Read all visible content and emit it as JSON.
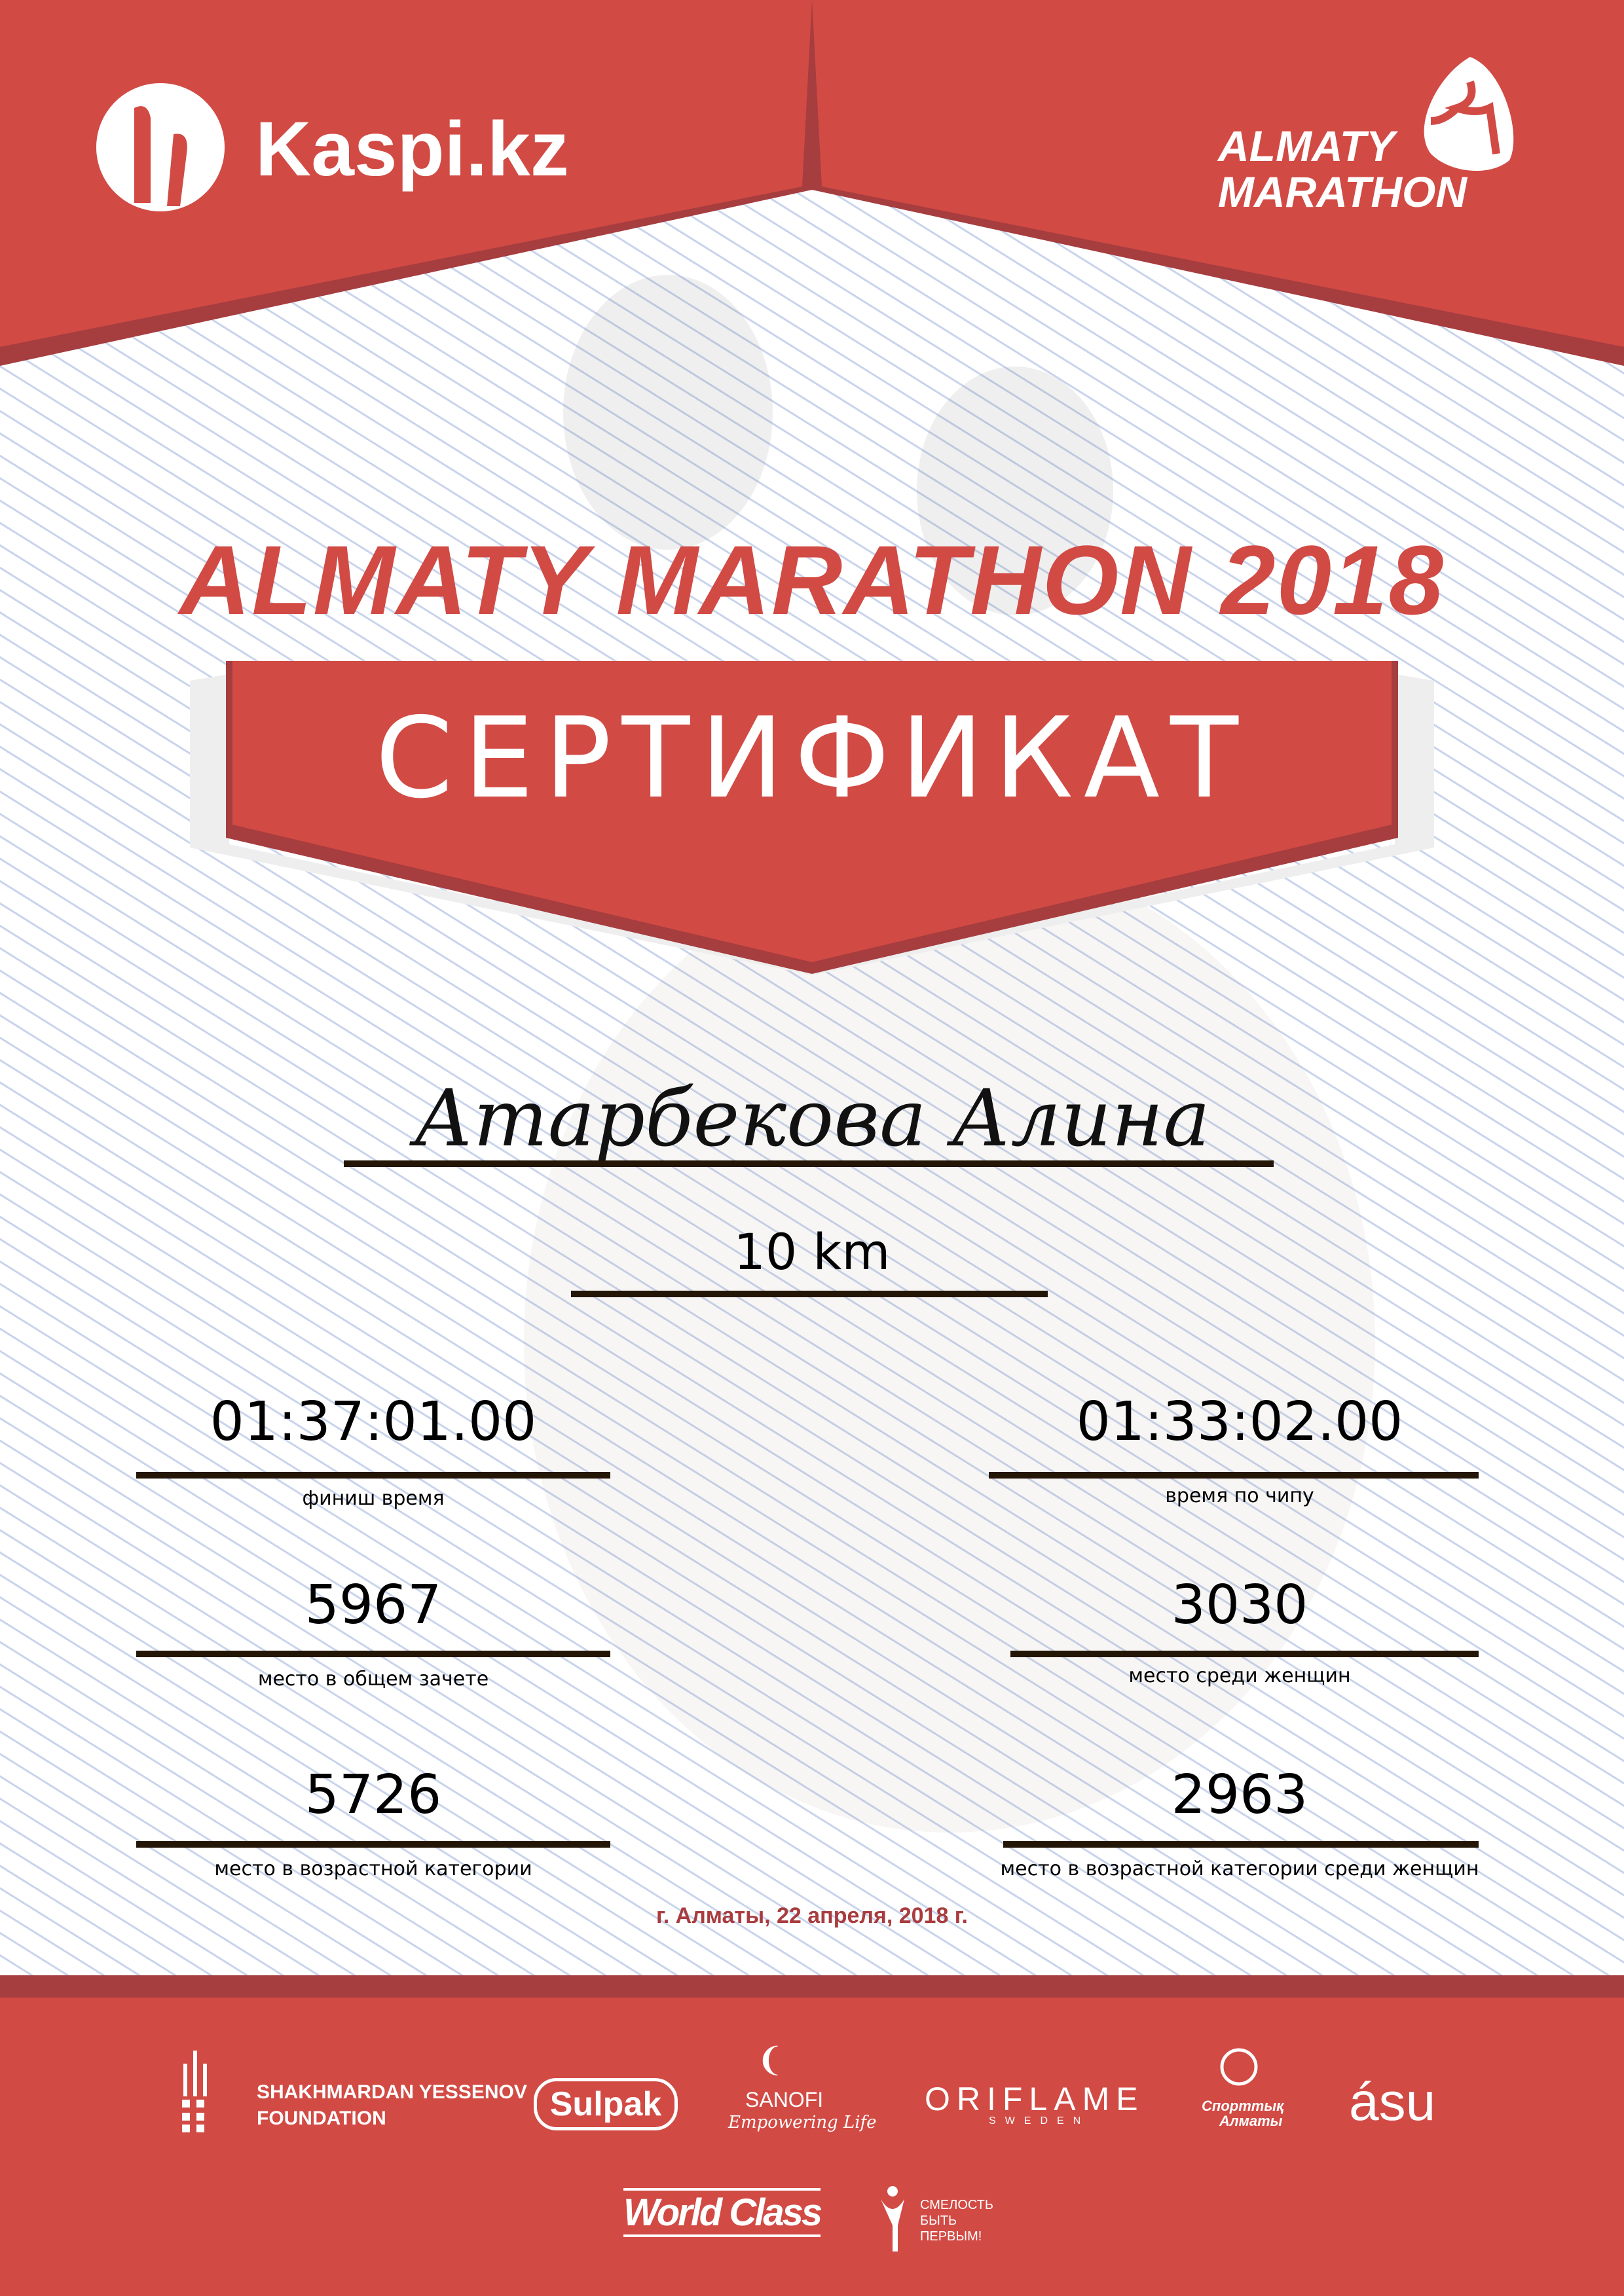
{
  "colors": {
    "primary_red": "#d24a44",
    "dark_red": "#a63d3f",
    "text": "#000000",
    "line": "#241607"
  },
  "header": {
    "left_logo": "Kaspi.kz",
    "right_logo_line1": "ALMATY",
    "right_logo_line2": "MARATHON"
  },
  "title": "ALMATY MARATHON 2018",
  "banner": "СЕРТИФИКАТ",
  "participant": {
    "name": "Атарбекова Алина",
    "distance": "10 km"
  },
  "stats": [
    {
      "value": "01:37:01.00",
      "label": "финиш время"
    },
    {
      "value": "01:33:02.00",
      "label": "время по чипу"
    },
    {
      "value": "5967",
      "label": "место в общем зачете"
    },
    {
      "value": "3030",
      "label": "место среди женщин"
    },
    {
      "value": "5726",
      "label": "место в возрастной категории"
    },
    {
      "value": "2963",
      "label": "место в возрастной категории среди женщин"
    }
  ],
  "date": "г. Алматы, 22 апреля, 2018 г.",
  "sponsors": {
    "yessenov": [
      "SHAKHMARDAN YESSENOV",
      "FOUNDATION"
    ],
    "sulpak": "Sulpak",
    "sanofi": [
      "SANOFI",
      "Empowering Life"
    ],
    "oriflame": [
      "ORIFLAME",
      "SWEDEN"
    ],
    "sportivnye": [
      "Спорттық",
      "Алматы"
    ],
    "asu": "ásu",
    "worldclass": "World Class",
    "smelost": [
      "СМЕЛОСТЬ",
      "БЫТЬ",
      "ПЕРВЫМ!"
    ]
  }
}
